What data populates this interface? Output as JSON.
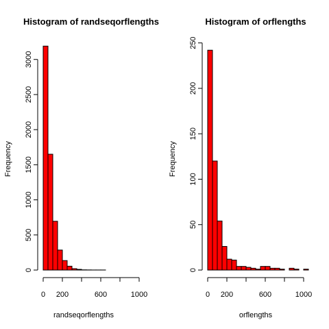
{
  "chart_data": [
    {
      "type": "bar",
      "title": "Histogram of randseqorflengths",
      "xlabel": "randseqorflengths",
      "ylabel": "Frequency",
      "bin_width": 50,
      "bin_start": 0,
      "values": [
        3190,
        1650,
        695,
        285,
        135,
        55,
        20,
        10,
        3,
        2,
        1,
        1,
        1,
        0,
        0,
        0,
        0,
        0,
        0,
        0,
        0
      ],
      "x_ticks": [
        0,
        200,
        600,
        1000
      ],
      "x_axis_range": [
        0,
        1000
      ],
      "y_ticks": [
        0,
        500,
        1000,
        1500,
        2000,
        2500,
        3000
      ],
      "ylim": [
        0,
        3300
      ],
      "bar_color": "#ff0000"
    },
    {
      "type": "bar",
      "title": "Histogram of orflengths",
      "xlabel": "orflengths",
      "ylabel": "Frequency",
      "bin_width": 50,
      "bin_start": 0,
      "values": [
        242,
        120,
        54,
        26,
        12,
        11,
        4,
        4,
        3,
        2,
        1,
        4,
        4,
        2,
        2,
        1,
        0,
        2,
        1,
        0,
        1
      ],
      "x_ticks": [
        0,
        200,
        600,
        1000
      ],
      "x_axis_range": [
        0,
        1000
      ],
      "y_ticks": [
        0,
        50,
        100,
        150,
        200,
        250
      ],
      "ylim": [
        0,
        255
      ],
      "bar_color": "#ff0000"
    }
  ]
}
